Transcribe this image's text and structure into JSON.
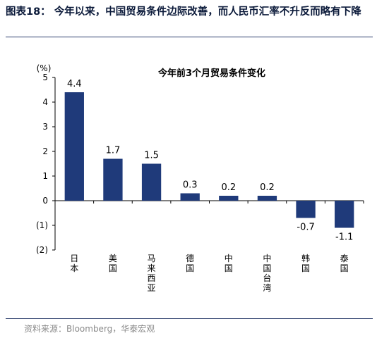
{
  "figure": {
    "title": "图表18：  今年以来，中国贸易条件边际改善，而人民币汇率不升反而略有下降",
    "source": "资料来源：Bloomberg，华泰宏观"
  },
  "chart_data": {
    "type": "bar",
    "title": "今年前3个月贸易条件变化",
    "ylabel": "(%)",
    "ylim": [
      -2,
      5
    ],
    "yticks": [
      5,
      4,
      3,
      2,
      1,
      0,
      -1,
      -2
    ],
    "ytick_labels": [
      "5",
      "4",
      "3",
      "2",
      "1",
      "0",
      "(1)",
      "(2)"
    ],
    "categories": [
      "日本",
      "美国",
      "马来西亚",
      "德国",
      "中国",
      "中国台湾",
      "韩国",
      "泰国"
    ],
    "values": [
      4.4,
      1.7,
      1.5,
      0.3,
      0.2,
      0.2,
      -0.7,
      -1.1
    ],
    "value_labels": [
      "4.4",
      "1.7",
      "1.5",
      "0.3",
      "0.2",
      "0.2",
      "-0.7",
      "-1.1"
    ],
    "bar_color": "#1f3a7a",
    "grid": false,
    "legend": "none"
  }
}
